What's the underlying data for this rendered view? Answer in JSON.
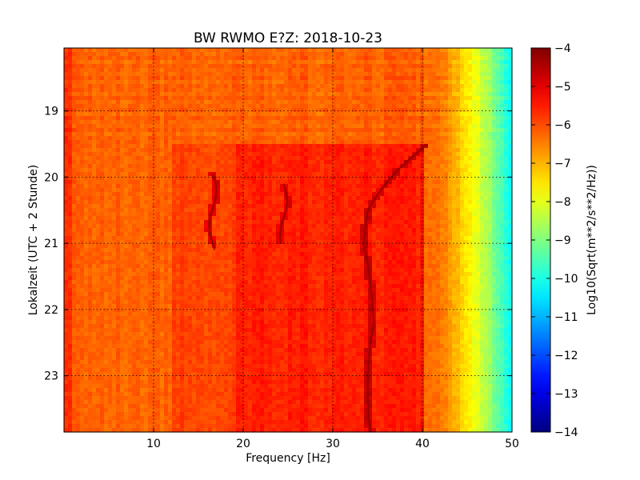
{
  "chart_data": {
    "type": "heatmap",
    "title": "BW RWMO E?Z: 2018-10-23",
    "xlabel": "Frequency [Hz]",
    "ylabel": "Lokalzeit (UTC + 2 Stunde)",
    "xlim": [
      0,
      50
    ],
    "ylim": [
      18.05,
      23.85
    ],
    "y_inverted": true,
    "x_ticks": [
      10,
      20,
      30,
      40,
      50
    ],
    "y_ticks": [
      19,
      20,
      21,
      22,
      23
    ],
    "x_tick_labels": [
      "10",
      "20",
      "30",
      "40",
      "50"
    ],
    "y_tick_labels": [
      "19",
      "20",
      "21",
      "22",
      "23"
    ],
    "grid": true,
    "colormap": "jet",
    "colorbar": {
      "label": "Log10(Sqrt(m**2/s**2/Hz))",
      "range": [
        -14,
        -4
      ],
      "ticks": [
        -4,
        -5,
        -6,
        -7,
        -8,
        -9,
        -10,
        -11,
        -12,
        -13,
        -14
      ],
      "tick_labels": [
        "−4",
        "−5",
        "−6",
        "−7",
        "−8",
        "−9",
        "−10",
        "−11",
        "−12",
        "−13",
        "−14"
      ]
    },
    "features": {
      "boundary_time": 19.48,
      "strong_band_hz": [
        19,
        40
      ],
      "line_trace_hz_vs_time": [
        [
          19.5,
          40.5
        ],
        [
          19.7,
          38.8
        ],
        [
          19.9,
          37.2
        ],
        [
          20.1,
          35.9
        ],
        [
          20.3,
          34.8
        ],
        [
          20.5,
          33.9
        ],
        [
          20.8,
          33.6
        ],
        [
          21.0,
          33.4
        ],
        [
          21.3,
          33.9
        ],
        [
          21.6,
          34.2
        ],
        [
          21.9,
          34.4
        ],
        [
          22.2,
          34.6
        ],
        [
          22.5,
          34.2
        ],
        [
          22.8,
          34.0
        ],
        [
          23.2,
          33.9
        ],
        [
          23.6,
          34.0
        ],
        [
          23.85,
          34.2
        ]
      ],
      "arc_features": [
        {
          "t": [
            19.95,
            21.1
          ],
          "hz": [
            16.0,
            17.2
          ]
        },
        {
          "t": [
            20.1,
            21.0
          ],
          "hz": [
            24.0,
            25.0
          ]
        }
      ]
    }
  },
  "colors": {
    "background": "#ffffff",
    "axis": "#000000",
    "low": "#00007f",
    "high": "#7f0000"
  }
}
